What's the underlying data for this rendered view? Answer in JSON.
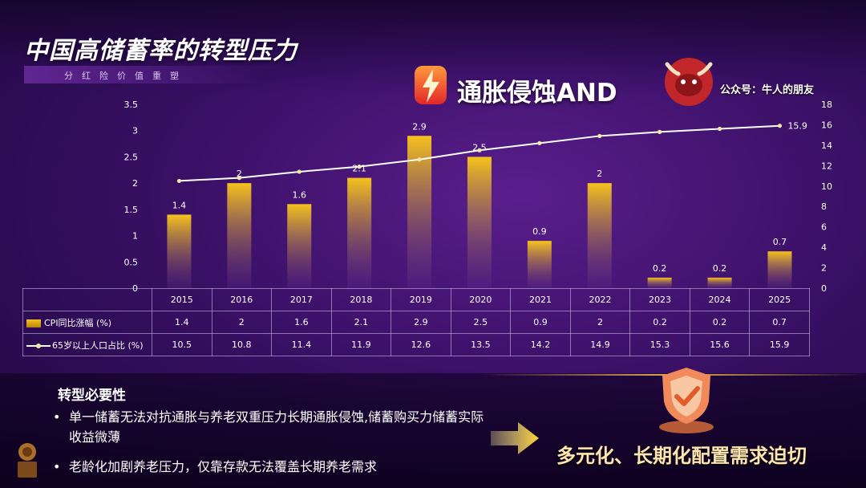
{
  "header": {
    "title": "中国高储蓄率的转型压力",
    "subtitle": "分红险价值重塑",
    "headline": "通胀侵蚀AND",
    "watermark": "公众号：牛人的朋友",
    "bolt_icon": "lightning-bolt-icon",
    "logo_icon": "bull-logo-icon"
  },
  "colors": {
    "bar_top": "#f6c21c",
    "bar_bottom": "#5a2a8a",
    "line": "#ffffff",
    "marker": "#f3e8a6"
  },
  "chart_data": {
    "type": "bar",
    "categories": [
      "2015",
      "2016",
      "2017",
      "2018",
      "2019",
      "2020",
      "2021",
      "2022",
      "2023",
      "2024",
      "2025"
    ],
    "series": [
      {
        "name": "CPI同比涨幅 (%)",
        "type": "bar",
        "axis": "left",
        "values": [
          1.4,
          2,
          1.6,
          2.1,
          2.9,
          2.5,
          0.9,
          2,
          0.2,
          0.2,
          0.7
        ]
      },
      {
        "name": "65岁以上人口占比 (%)",
        "type": "line",
        "axis": "right",
        "values": [
          10.5,
          10.8,
          11.4,
          11.9,
          12.6,
          13.5,
          14.2,
          14.9,
          15.3,
          15.6,
          15.9
        ]
      }
    ],
    "ylim_left": [
      0,
      3.5
    ],
    "yticks_left": [
      "0",
      "0.5",
      "1",
      "1.5",
      "2",
      "2.5",
      "3",
      "3.5"
    ],
    "ylim_right": [
      0,
      18
    ],
    "yticks_right": [
      "0",
      "2",
      "4",
      "6",
      "8",
      "10",
      "12",
      "14",
      "16",
      "18"
    ],
    "bar_labels": [
      "1.4",
      "2",
      "1.6",
      "2.1",
      "2.9",
      "2.5",
      "0.9",
      "2",
      "0.2",
      "0.2",
      "0.7"
    ],
    "line_end_label": "15.9",
    "legend": "data-table"
  },
  "bottom": {
    "section_title": "转型必要性",
    "bullets": [
      "单一储蓄无法对抗通胀与养老双重压力长期通胀侵蚀,储蓄购买力储蓄实际收益微薄",
      "老龄化加剧养老压力，仅靠存款无法覆盖长期养老需求"
    ],
    "bullet_marker": "•",
    "callout": "多元化、长期化配置需求迫切",
    "arrow_icon": "arrow-right-icon",
    "shield_icon": "shield-check-icon"
  }
}
